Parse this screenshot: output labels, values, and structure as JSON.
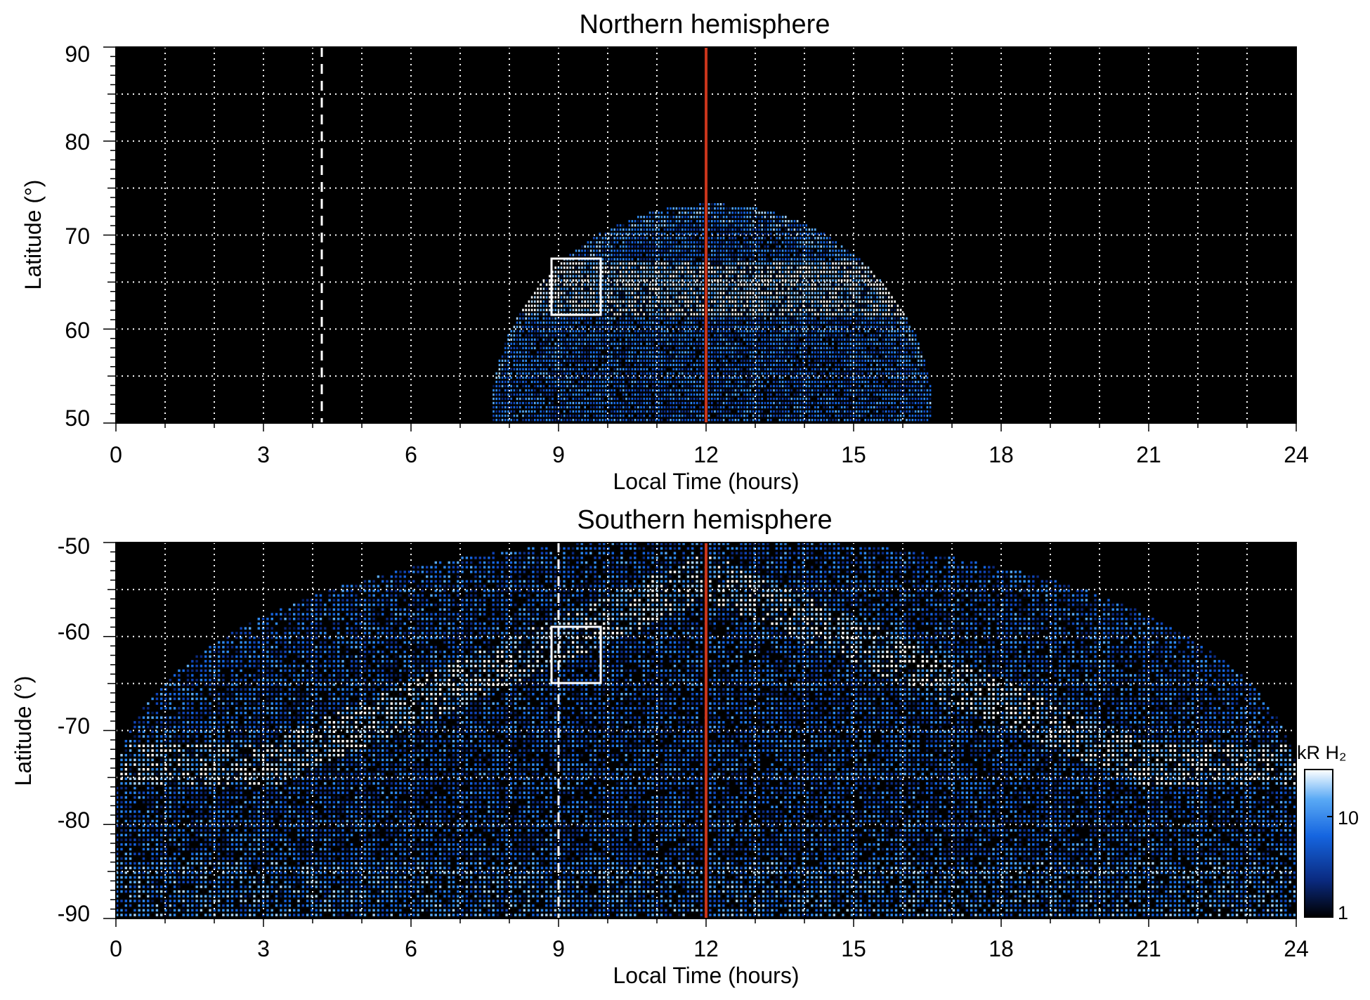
{
  "chart_data": [
    {
      "type": "heatmap",
      "title": "Northern hemisphere",
      "xlabel": "Local Time (hours)",
      "ylabel": "Latitude (°)",
      "xlim": [
        0,
        24
      ],
      "ylim": [
        50,
        90
      ],
      "xticks": [
        "0",
        "3",
        "6",
        "9",
        "12",
        "15",
        "18",
        "21",
        "24"
      ],
      "yticks": [
        "50",
        "60",
        "70",
        "80",
        "90"
      ],
      "grid": true,
      "grid_lines": {
        "x_step_hours": 1,
        "y_step_deg": 5
      },
      "noon_line_hour": 12,
      "noon_line_color": "#c8351c",
      "dashed_line_hour": 4.2,
      "highlight_box": {
        "x": [
          9,
          10
        ],
        "y": [
          61.5,
          67.5
        ]
      },
      "emission_region": {
        "x_extent_hours": [
          7.6,
          16.6
        ],
        "peak_latitude": 73,
        "bright_oval_latitude": 64
      }
    },
    {
      "type": "heatmap",
      "title": "Southern hemisphere",
      "xlabel": "Local Time (hours)",
      "ylabel": "Latitude (°)",
      "xlim": [
        0,
        24
      ],
      "ylim": [
        -90,
        -50
      ],
      "xticks": [
        "0",
        "3",
        "6",
        "9",
        "12",
        "15",
        "18",
        "21",
        "24"
      ],
      "yticks": [
        "-90",
        "-80",
        "-70",
        "-60",
        "-50"
      ],
      "grid": true,
      "grid_lines": {
        "x_step_hours": 1,
        "y_step_deg": 5
      },
      "noon_line_hour": 12,
      "noon_line_color": "#c8351c",
      "dashed_line_hour": 9,
      "highlight_box": {
        "x": [
          9,
          10
        ],
        "y": [
          -65,
          -59
        ]
      },
      "emission_region": {
        "x_extent_hours": [
          0,
          24
        ],
        "bright_oval_latitude": -74
      }
    }
  ],
  "colorbar": {
    "label": "kR H₂",
    "ticks": [
      "1",
      "10"
    ],
    "scale": "log",
    "range": [
      1,
      25
    ],
    "colors": [
      "#000000",
      "#0a2a80",
      "#1565e0",
      "#5aaaf5",
      "#ffffff"
    ]
  }
}
